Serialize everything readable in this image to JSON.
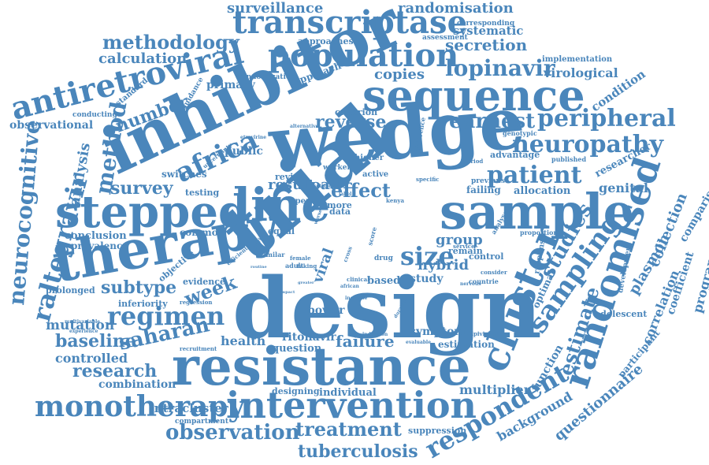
{
  "color": "#4a86bb",
  "words": [
    "design",
    "trial",
    "wedge",
    "inhibitor",
    "resistance",
    "therapy",
    "sample",
    "line",
    "stepped",
    "sequence",
    "population",
    "intervention",
    "cluster",
    "randomised",
    "transcriptase",
    "antiretroviral",
    "sampling",
    "monotherapy",
    "africa",
    "raltegravir",
    "neurocognitive",
    "regimen",
    "respondent",
    "peripheral",
    "earnest",
    "neuropathy",
    "patient",
    "size",
    "method",
    "methodology",
    "lopinavir",
    "surveillance",
    "randomisation",
    "secretion",
    "systematic",
    "calculation",
    "observation",
    "treatment",
    "tuberculosis",
    "saharan",
    "baseline",
    "research",
    "controlled",
    "mutation",
    "subtype",
    "week",
    "survey",
    "number",
    "analysis",
    "reverse",
    "effect",
    "result",
    "load",
    "group",
    "hybrid",
    "studies",
    "estimate",
    "plasmon",
    "collection",
    "questionnaire",
    "comparison",
    "programme",
    "correlation",
    "coefficient",
    "background",
    "function",
    "failure",
    "health",
    "ritonavir",
    "question",
    "power",
    "intracluster",
    "combination",
    "multiplier",
    "virological",
    "copies",
    "observational",
    "primary",
    "public",
    "conclusion",
    "prevalence",
    "common",
    "objective",
    "evidence",
    "inferiority",
    "prolonged",
    "viral",
    "study",
    "based",
    "symptom",
    "estimation",
    "individual",
    "designing",
    "compartment",
    "suppression",
    "genital",
    "allocation",
    "researcher",
    "condition",
    "implementation",
    "corresponding",
    "approaches",
    "assessment",
    "randomization",
    "approach",
    "standard",
    "guidance",
    "conducting",
    "switches",
    "testing",
    "uncertainty",
    "etravirine",
    "criterion",
    "alternative",
    "difference",
    "genotypic",
    "advantage",
    "published",
    "previous",
    "failing",
    "specific",
    "active",
    "higher",
    "worker",
    "review",
    "open",
    "more",
    "data",
    "equal",
    "remain",
    "control",
    "kenya",
    "adult",
    "drug",
    "clinical",
    "female",
    "similar",
    "taking",
    "regression",
    "recruitment",
    "experience",
    "multivariable",
    "induction",
    "evaluable",
    "rilpivirine",
    "participant",
    "optimal",
    "adolescent",
    "development",
    "proportion",
    "response",
    "analyse",
    "consider",
    "service",
    "countrie",
    "period",
    "cross",
    "label",
    "worse",
    "activity",
    "efficient",
    "impact",
    "african",
    "increase",
    "greater",
    "duration",
    "nervous",
    "routine",
    "score",
    "setting"
  ]
}
